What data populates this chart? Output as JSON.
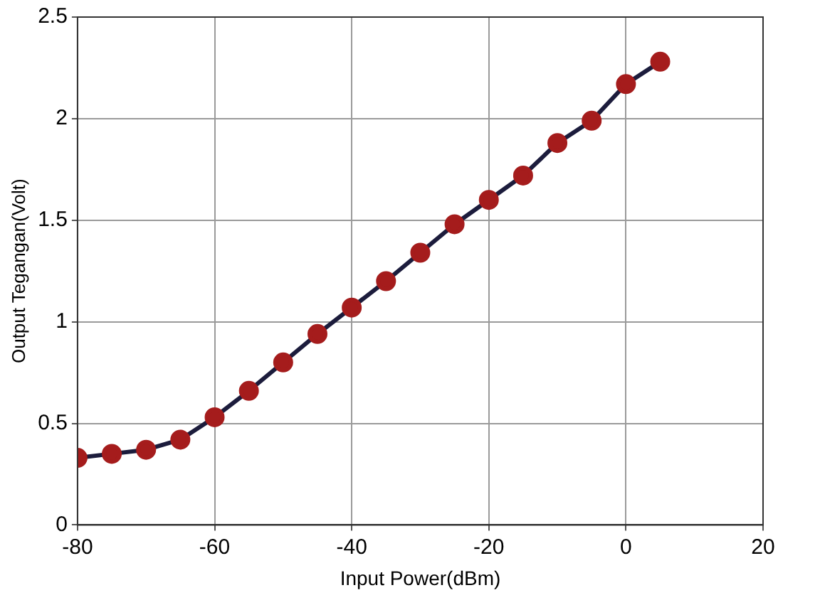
{
  "chart_data": {
    "type": "line",
    "xlabel": "Input Power(dBm)",
    "ylabel": "Output Tegangan(Volt)",
    "x": [
      -80,
      -75,
      -70,
      -65,
      -60,
      -55,
      -50,
      -45,
      -40,
      -35,
      -30,
      -25,
      -20,
      -15,
      -10,
      -5,
      0,
      5
    ],
    "series": [
      {
        "color": "#1c1c3c",
        "colors": [
          "#a51c1c",
          "#a51c1c",
          "#a51c1c",
          "#a51c1c",
          "#a51c1c",
          "#a51c1c",
          "#a51c1c",
          "#a51c1c",
          "#a51c1c",
          "#a51c1c",
          "#a51c1c",
          "#a51c1c",
          "#a51c1c",
          "#a51c1c",
          "#a51c1c",
          "#a51c1c",
          "#a51c1c",
          "#a51c1c"
        ],
        "values": [
          0.33,
          0.35,
          0.37,
          0.42,
          0.53,
          0.66,
          0.8,
          0.94,
          1.07,
          1.2,
          1.34,
          1.48,
          1.6,
          1.72,
          1.88,
          1.99,
          2.17,
          2.28
        ]
      }
    ],
    "xlim": [
      -80,
      20
    ],
    "xticks": [
      -80,
      -60,
      -40,
      -20,
      0,
      20
    ],
    "ylim": [
      0,
      2.5
    ],
    "yticks": [
      0,
      0.5,
      1,
      1.5,
      2,
      2.5
    ],
    "grid": true,
    "marker": "circle",
    "line_style": "solid",
    "legend": false
  }
}
